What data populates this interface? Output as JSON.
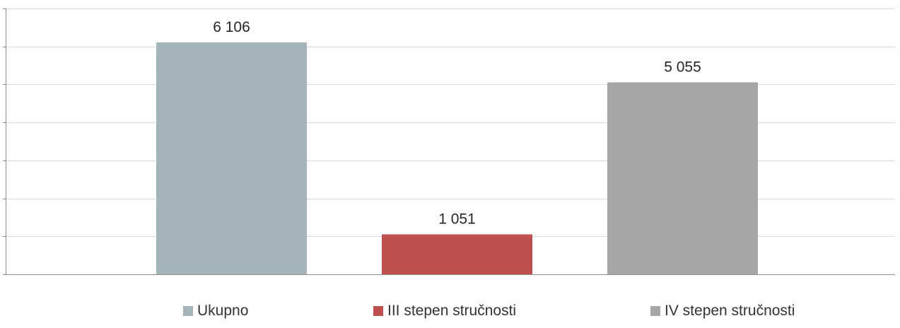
{
  "chart_data": {
    "type": "bar",
    "title": "",
    "xlabel": "",
    "ylabel": "",
    "categories": [
      "Ukupno",
      "III stepen stručnosti",
      "IV stepen stručnosti"
    ],
    "values": [
      6106,
      1051,
      5055
    ],
    "value_labels": [
      "6 106",
      "1 051",
      "5 055"
    ],
    "colors": [
      "#a4b4bb",
      "#c0504d",
      "#a6a6a6"
    ],
    "ylim": [
      0,
      7000
    ],
    "y_gridline_step": 1000,
    "y_tick_labels_visible": false,
    "grid": true,
    "legend_position": "bottom"
  }
}
